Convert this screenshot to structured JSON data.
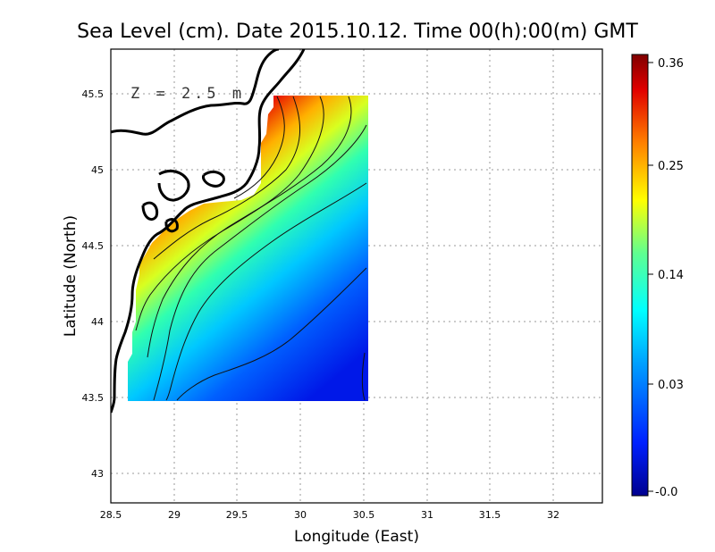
{
  "title": "Sea Level (cm). Date 2015.10.12. Time 00(h):00(m) GMT",
  "xlabel": "Longitude (East)",
  "ylabel": "Latitude (North)",
  "annotation": "Z = 2.5 m",
  "x_ticks": [
    "28.5",
    "29",
    "29.5",
    "30",
    "30.5",
    "31",
    "31.5",
    "32"
  ],
  "y_ticks": [
    "43",
    "43.5",
    "44",
    "44.5",
    "45",
    "45.5"
  ],
  "colorbar": {
    "labels": [
      "0.36",
      "0.25",
      "0.14",
      "0.03",
      "-0.0"
    ],
    "colors": [
      "#00008f",
      "#0040ff",
      "#00bfff",
      "#40ff80",
      "#ffff00",
      "#ff8000",
      "#e00000",
      "#800000"
    ]
  },
  "chart_data": {
    "type": "heatmap",
    "xlim": [
      28.5,
      32.4
    ],
    "ylim": [
      42.8,
      45.8
    ],
    "x_range_data": [
      28.65,
      30.55
    ],
    "y_range_data": [
      43.5,
      45.5
    ],
    "value_range": [
      -0.0,
      0.36
    ],
    "grid": true
  }
}
